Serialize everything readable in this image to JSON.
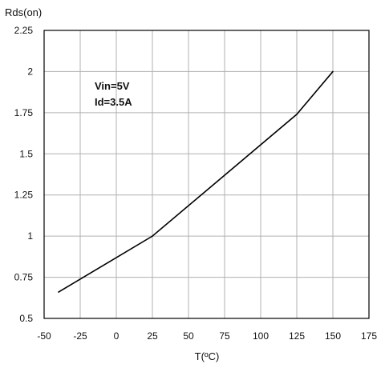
{
  "chart_data": {
    "type": "line",
    "title": "",
    "xlabel": "T(ºC)",
    "ylabel": "Rds(on)",
    "xlim": [
      -50,
      175
    ],
    "ylim": [
      0.5,
      2.25
    ],
    "x_ticks": [
      -50,
      -25,
      0,
      25,
      50,
      75,
      100,
      125,
      150,
      175
    ],
    "y_ticks": [
      0.5,
      0.75,
      1,
      1.25,
      1.5,
      1.75,
      2,
      2.25
    ],
    "y_tick_labels": [
      "0.5",
      "0.75",
      "1",
      "1.25",
      "1.5",
      "1.75",
      "2",
      "2.25"
    ],
    "grid": true,
    "annotations": [
      "Vin=5V",
      "Id=3.5A"
    ],
    "series": [
      {
        "x": [
          -40,
          25,
          125,
          150
        ],
        "y": [
          0.66,
          1.0,
          1.74,
          2.0
        ]
      }
    ],
    "line_color": "#000000",
    "grid_color": "#b0b0b0"
  }
}
